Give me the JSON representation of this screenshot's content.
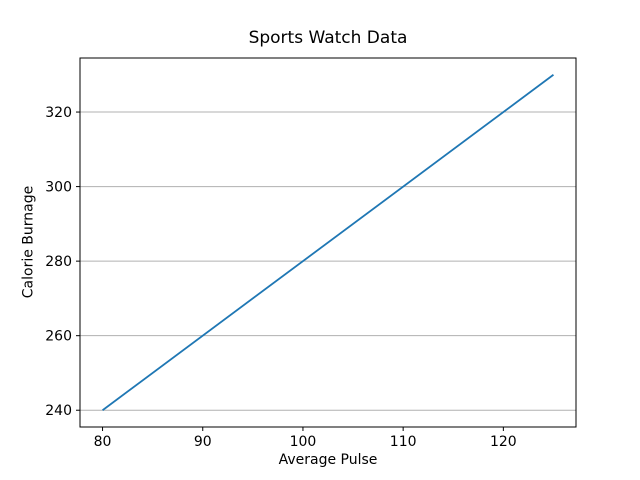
{
  "chart_data": {
    "type": "line",
    "title": "Sports Watch Data",
    "xlabel": "Average Pulse",
    "ylabel": "Calorie Burnage",
    "x": [
      80,
      125
    ],
    "y": [
      240,
      330
    ],
    "xticks": [
      80,
      90,
      100,
      110,
      120
    ],
    "yticks": [
      240,
      260,
      280,
      300,
      320
    ],
    "xlim": [
      77.75,
      127.25
    ],
    "ylim": [
      235.5,
      334.5
    ],
    "grid": "horizontal-only",
    "legend_position": "none",
    "line_color": "#1f77b4",
    "grid_color": "#b0b0b0",
    "spine_color": "#000000",
    "background_color": "#ffffff"
  }
}
